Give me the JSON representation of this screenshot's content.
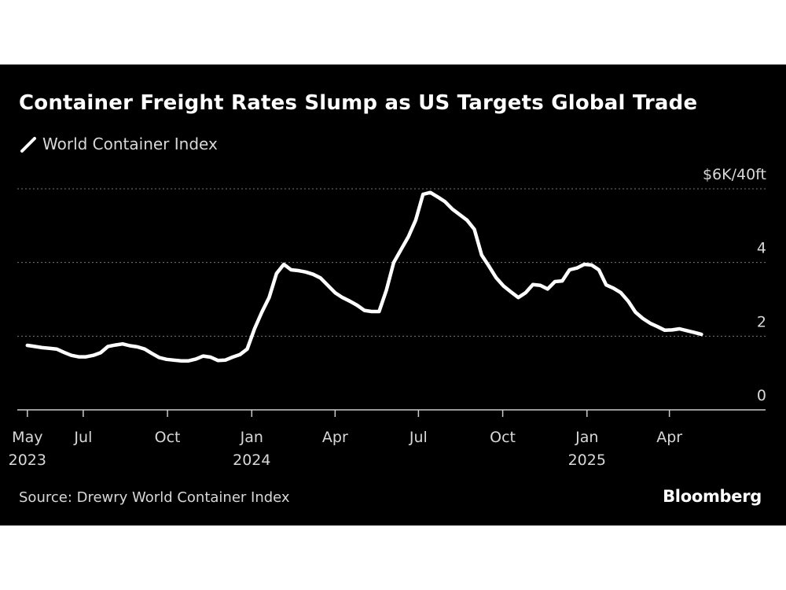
{
  "colors": {
    "background": "#000000",
    "line": "#ffffff",
    "text": "#d8d8d8",
    "grid": "#777777"
  },
  "chart_data": {
    "type": "line",
    "title": "Container Freight Rates Slump as US Targets Global Trade",
    "legend": [
      "World Container Index"
    ],
    "y_unit_label": "$6K/40ft",
    "ylim": [
      0,
      6000
    ],
    "y_ticks": [
      0,
      2000,
      4000,
      6000
    ],
    "y_tick_labels": [
      "0",
      "2",
      "4",
      "$6K/40ft"
    ],
    "grid": "horizontal dotted",
    "x_tick_labels": [
      {
        "date": "2023-05-01",
        "lines": [
          "May",
          "2023"
        ]
      },
      {
        "date": "2023-07-01",
        "lines": [
          "Jul"
        ]
      },
      {
        "date": "2023-10-01",
        "lines": [
          "Oct"
        ]
      },
      {
        "date": "2024-01-01",
        "lines": [
          "Jan",
          "2024"
        ]
      },
      {
        "date": "2024-04-01",
        "lines": [
          "Apr"
        ]
      },
      {
        "date": "2024-07-01",
        "lines": [
          "Jul"
        ]
      },
      {
        "date": "2024-10-01",
        "lines": [
          "Oct"
        ]
      },
      {
        "date": "2025-01-01",
        "lines": [
          "Jan",
          "2025"
        ]
      },
      {
        "date": "2025-04-01",
        "lines": [
          "Apr"
        ]
      }
    ],
    "xlim": [
      "2023-04-20",
      "2025-07-15"
    ],
    "series": [
      {
        "name": "World Container Index",
        "points": [
          [
            "2023-05-01",
            1750
          ],
          [
            "2023-05-09",
            1720
          ],
          [
            "2023-05-17",
            1690
          ],
          [
            "2023-05-25",
            1670
          ],
          [
            "2023-06-02",
            1650
          ],
          [
            "2023-06-10",
            1560
          ],
          [
            "2023-06-18",
            1480
          ],
          [
            "2023-06-26",
            1440
          ],
          [
            "2023-07-04",
            1440
          ],
          [
            "2023-07-12",
            1480
          ],
          [
            "2023-07-20",
            1550
          ],
          [
            "2023-07-28",
            1720
          ],
          [
            "2023-08-05",
            1760
          ],
          [
            "2023-08-13",
            1790
          ],
          [
            "2023-08-21",
            1740
          ],
          [
            "2023-08-29",
            1710
          ],
          [
            "2023-09-06",
            1650
          ],
          [
            "2023-09-14",
            1530
          ],
          [
            "2023-09-22",
            1420
          ],
          [
            "2023-09-30",
            1370
          ],
          [
            "2023-10-08",
            1350
          ],
          [
            "2023-10-16",
            1330
          ],
          [
            "2023-10-24",
            1330
          ],
          [
            "2023-11-01",
            1380
          ],
          [
            "2023-11-09",
            1460
          ],
          [
            "2023-11-17",
            1430
          ],
          [
            "2023-11-25",
            1340
          ],
          [
            "2023-12-03",
            1350
          ],
          [
            "2023-12-11",
            1430
          ],
          [
            "2023-12-19",
            1500
          ],
          [
            "2023-12-27",
            1650
          ],
          [
            "2024-01-04",
            2200
          ],
          [
            "2024-01-12",
            2650
          ],
          [
            "2024-01-20",
            3050
          ],
          [
            "2024-01-28",
            3700
          ],
          [
            "2024-02-05",
            3950
          ],
          [
            "2024-02-13",
            3800
          ],
          [
            "2024-02-21",
            3780
          ],
          [
            "2024-02-29",
            3740
          ],
          [
            "2024-03-08",
            3680
          ],
          [
            "2024-03-16",
            3580
          ],
          [
            "2024-03-24",
            3380
          ],
          [
            "2024-04-01",
            3180
          ],
          [
            "2024-04-09",
            3050
          ],
          [
            "2024-04-17",
            2950
          ],
          [
            "2024-04-25",
            2840
          ],
          [
            "2024-05-03",
            2700
          ],
          [
            "2024-05-11",
            2670
          ],
          [
            "2024-05-19",
            2670
          ],
          [
            "2024-05-27",
            3250
          ],
          [
            "2024-06-04",
            4000
          ],
          [
            "2024-06-12",
            4350
          ],
          [
            "2024-06-20",
            4700
          ],
          [
            "2024-06-28",
            5150
          ],
          [
            "2024-07-06",
            5850
          ],
          [
            "2024-07-14",
            5900
          ],
          [
            "2024-07-22",
            5780
          ],
          [
            "2024-07-30",
            5650
          ],
          [
            "2024-08-07",
            5450
          ],
          [
            "2024-08-15",
            5300
          ],
          [
            "2024-08-23",
            5150
          ],
          [
            "2024-08-31",
            4900
          ],
          [
            "2024-09-08",
            4200
          ],
          [
            "2024-09-16",
            3900
          ],
          [
            "2024-09-24",
            3580
          ],
          [
            "2024-10-02",
            3360
          ],
          [
            "2024-10-10",
            3200
          ],
          [
            "2024-10-18",
            3050
          ],
          [
            "2024-10-26",
            3180
          ],
          [
            "2024-11-03",
            3400
          ],
          [
            "2024-11-11",
            3380
          ],
          [
            "2024-11-19",
            3280
          ],
          [
            "2024-11-27",
            3480
          ],
          [
            "2024-12-05",
            3500
          ],
          [
            "2024-12-13",
            3800
          ],
          [
            "2024-12-21",
            3850
          ],
          [
            "2024-12-29",
            3950
          ],
          [
            "2025-01-06",
            3930
          ],
          [
            "2025-01-14",
            3800
          ],
          [
            "2025-01-22",
            3390
          ],
          [
            "2025-01-30",
            3300
          ],
          [
            "2025-02-07",
            3180
          ],
          [
            "2025-02-15",
            2950
          ],
          [
            "2025-02-23",
            2650
          ],
          [
            "2025-03-03",
            2480
          ],
          [
            "2025-03-11",
            2350
          ],
          [
            "2025-03-19",
            2260
          ],
          [
            "2025-03-27",
            2160
          ],
          [
            "2025-04-04",
            2170
          ],
          [
            "2025-04-12",
            2200
          ],
          [
            "2025-04-20",
            2150
          ],
          [
            "2025-04-28",
            2100
          ],
          [
            "2025-05-06",
            2050
          ]
        ]
      }
    ]
  },
  "footer": {
    "source": "Source: Drewry World Container Index",
    "brand": "Bloomberg"
  }
}
